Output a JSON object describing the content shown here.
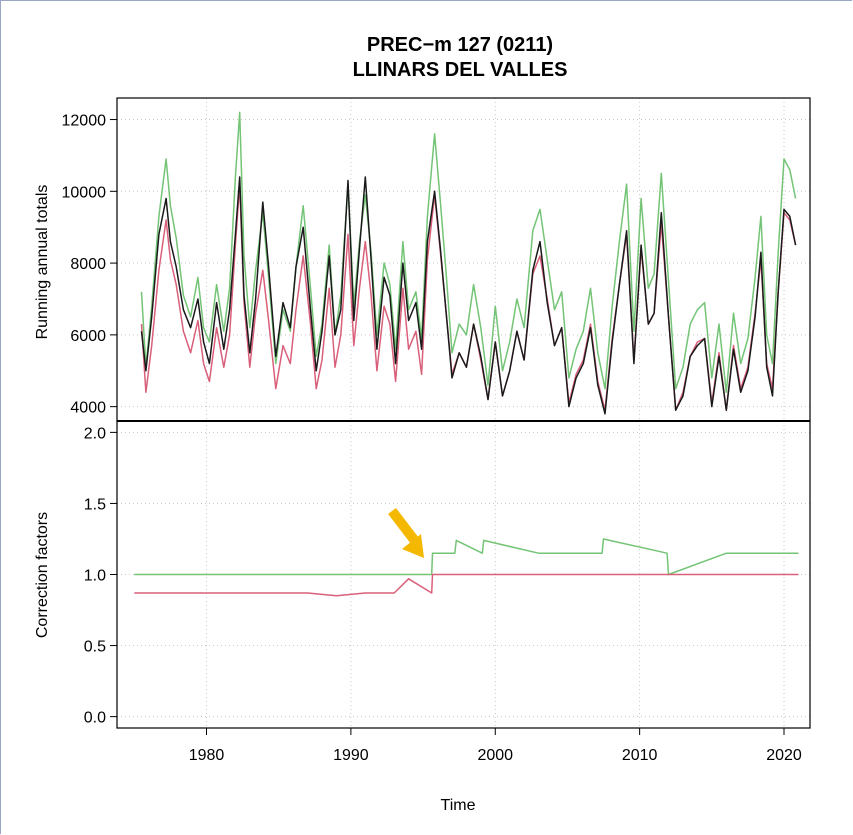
{
  "chart_data": [
    {
      "type": "line",
      "panel": "top",
      "title": "PREC−m   127 (0211)",
      "subtitle": "LLINARS DEL VALLES",
      "xlabel": "",
      "ylabel": "Running annual totals",
      "xlim": [
        1973.8,
        2021.8
      ],
      "ylim": [
        3600,
        12600
      ],
      "yticks": [
        4000,
        6000,
        8000,
        10000,
        12000
      ],
      "ytick_labels": [
        "4000",
        "6000",
        "8000",
        "10000",
        "12000"
      ],
      "grid": true,
      "series_style": [
        {
          "color": "#74c476"
        },
        {
          "color": "#d9607a"
        },
        {
          "color": "#1a1a1a"
        }
      ],
      "x": [
        1975.5,
        1975.8,
        1976.2,
        1976.7,
        1977.2,
        1977.5,
        1977.9,
        1978.4,
        1978.9,
        1979.4,
        1979.8,
        1980.2,
        1980.7,
        1981.2,
        1981.6,
        1982.0,
        1982.3,
        1982.6,
        1983.0,
        1983.4,
        1983.9,
        1984.3,
        1984.8,
        1985.3,
        1985.8,
        1986.2,
        1986.7,
        1987.2,
        1987.6,
        1988.0,
        1988.5,
        1988.9,
        1989.3,
        1989.8,
        1990.2,
        1990.6,
        1991.0,
        1991.4,
        1991.8,
        1992.3,
        1992.7,
        1993.1,
        1993.6,
        1994.0,
        1994.5,
        1994.9,
        1995.3,
        1995.8,
        1996.2,
        1996.6,
        1997.0,
        1997.5,
        1998.0,
        1998.5,
        1999.0,
        1999.5,
        2000.0,
        2000.5,
        2001.0,
        2001.5,
        2002.0,
        2002.6,
        2003.1,
        2003.6,
        2004.1,
        2004.6,
        2005.1,
        2005.6,
        2006.1,
        2006.6,
        2007.1,
        2007.6,
        2008.1,
        2008.6,
        2009.1,
        2009.6,
        2010.1,
        2010.6,
        2011.0,
        2011.5,
        2012.0,
        2012.5,
        2013.0,
        2013.5,
        2014.0,
        2014.5,
        2015.0,
        2015.5,
        2016.0,
        2016.5,
        2017.0,
        2017.5,
        2018.0,
        2018.4,
        2018.8,
        2019.2,
        2019.6,
        2020.0,
        2020.4,
        2020.8
      ],
      "series": [
        {
          "values": [
            7200,
            5100,
            6800,
            9300,
            10900,
            9600,
            8700,
            7100,
            6500,
            7600,
            6200,
            5800,
            7400,
            6100,
            7300,
            10400,
            12200,
            8200,
            6200,
            7800,
            9400,
            7600,
            5200,
            6700,
            6100,
            7900,
            9600,
            7300,
            5400,
            6300,
            8500,
            6000,
            7100,
            10200,
            6800,
            8600,
            9900,
            8300,
            6000,
            8000,
            7400,
            5600,
            8600,
            6700,
            7200,
            5900,
            9300,
            11600,
            9700,
            7700,
            5500,
            6300,
            6000,
            7400,
            6200,
            4600,
            6800,
            5000,
            5800,
            7000,
            6200,
            8900,
            9500,
            8100,
            6700,
            7200,
            4800,
            5600,
            6100,
            7300,
            5500,
            4500,
            6800,
            8600,
            10200,
            6100,
            9800,
            7300,
            7700,
            10500,
            7500,
            4500,
            5100,
            6300,
            6700,
            6900,
            4800,
            6300,
            4400,
            6600,
            5200,
            5900,
            7600,
            9300,
            6000,
            5200,
            8300,
            10900,
            10600,
            9800
          ]
        },
        {
          "values": [
            6300,
            4400,
            5700,
            7800,
            9200,
            8100,
            7400,
            6100,
            5500,
            6400,
            5200,
            4700,
            6200,
            5100,
            6000,
            8500,
            10200,
            6900,
            5100,
            6600,
            7800,
            6400,
            4500,
            5700,
            5200,
            6700,
            8200,
            6300,
            4500,
            5300,
            7300,
            5100,
            6000,
            8800,
            5700,
            7300,
            8600,
            7100,
            5000,
            6800,
            6300,
            4700,
            7300,
            5600,
            6100,
            4900,
            8100,
            9900,
            8300,
            6600,
            4900,
            5500,
            5100,
            6300,
            5300,
            4200,
            5800,
            4300,
            5000,
            6100,
            5300,
            7700,
            8200,
            7000,
            5700,
            6200,
            4100,
            4900,
            5300,
            6300,
            4700,
            3900,
            5900,
            7400,
            8800,
            5300,
            8400,
            6300,
            6600,
            9100,
            6500,
            3900,
            4400,
            5400,
            5800,
            5900,
            4100,
            5500,
            3900,
            5700,
            4500,
            5100,
            6600,
            8100,
            5200,
            4500,
            7200,
            9400,
            9200,
            8500
          ]
        },
        {
          "values": [
            6100,
            5000,
            6500,
            8800,
            9800,
            8600,
            7900,
            6700,
            6200,
            7000,
            5800,
            5200,
            6900,
            5600,
            6700,
            8800,
            10400,
            7100,
            5500,
            7000,
            9700,
            7900,
            5400,
            6900,
            6200,
            7900,
            9000,
            6700,
            5000,
            6100,
            8200,
            6000,
            6700,
            10300,
            6400,
            8400,
            10400,
            8100,
            5600,
            7600,
            7100,
            5200,
            8000,
            6400,
            6900,
            5600,
            8600,
            10000,
            8400,
            6600,
            4800,
            5500,
            5100,
            6300,
            5400,
            4200,
            5800,
            4300,
            5000,
            6100,
            5300,
            7800,
            8600,
            6900,
            5700,
            6200,
            4000,
            4800,
            5200,
            6200,
            4600,
            3800,
            5800,
            7400,
            8900,
            5200,
            8500,
            6300,
            6600,
            9400,
            6500,
            3900,
            4300,
            5400,
            5700,
            5900,
            4000,
            5400,
            3900,
            5600,
            4400,
            5000,
            6500,
            8300,
            5100,
            4300,
            7200,
            9500,
            9300,
            8500
          ]
        }
      ]
    },
    {
      "type": "line",
      "panel": "bottom",
      "title": "",
      "xlabel": "Time",
      "ylabel": "Correction factors",
      "xlim": [
        1973.8,
        2021.8
      ],
      "ylim": [
        -0.08,
        2.08
      ],
      "xticks": [
        1980,
        1990,
        2000,
        2010,
        2020
      ],
      "xtick_labels": [
        "1980",
        "1990",
        "2000",
        "2010",
        "2020"
      ],
      "yticks": [
        0.0,
        0.5,
        1.0,
        1.5,
        2.0
      ],
      "ytick_labels": [
        "0.0",
        "0.5",
        "1.0",
        "1.5",
        "2.0"
      ],
      "grid": true,
      "annotation": {
        "type": "arrow",
        "color": "#f5b800",
        "target_x": 1995.5,
        "target_y": 1.12
      },
      "series_style": [
        {
          "color": "#74c476"
        },
        {
          "color": "#d9607a"
        }
      ],
      "x": [
        1975.0,
        1979.0,
        1983.0,
        1987.0,
        1989.0,
        1991.0,
        1993.0,
        1994.0,
        1995.6,
        1995.65,
        1997.2,
        1997.3,
        1999.1,
        1999.2,
        2003.0,
        2007.4,
        2007.5,
        2011.9,
        2012.0,
        2016.0,
        2021.0
      ],
      "series": [
        {
          "values": [
            1.0,
            1.0,
            1.0,
            1.0,
            1.0,
            1.0,
            1.0,
            1.0,
            1.0,
            1.15,
            1.15,
            1.24,
            1.15,
            1.24,
            1.15,
            1.15,
            1.25,
            1.15,
            1.0,
            1.15,
            1.15
          ]
        },
        {
          "values": [
            0.87,
            0.87,
            0.87,
            0.87,
            0.85,
            0.87,
            0.87,
            0.97,
            0.87,
            1.0,
            1.0,
            1.0,
            1.0,
            1.0,
            1.0,
            1.0,
            1.0,
            1.0,
            1.0,
            1.0,
            1.0
          ]
        }
      ]
    }
  ]
}
